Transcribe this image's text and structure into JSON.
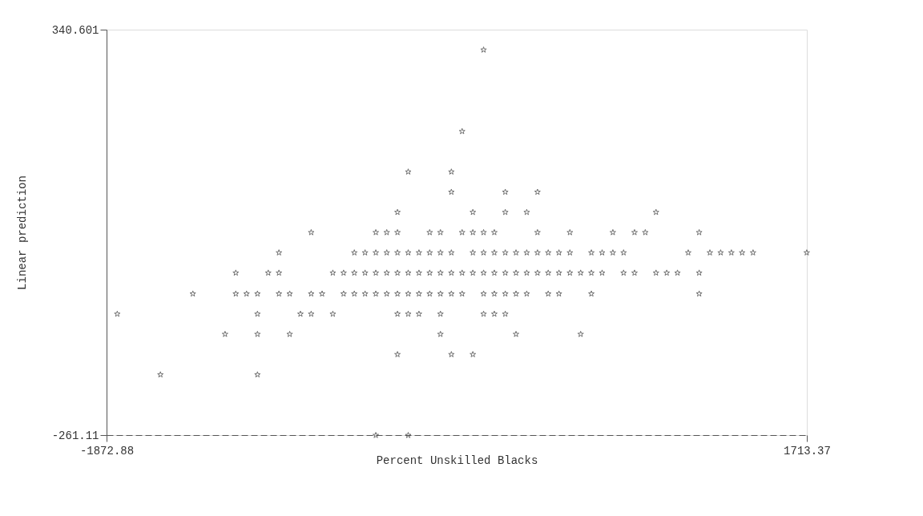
{
  "chart_data": {
    "type": "scatter",
    "xlabel": "Percent Unskilled Blacks",
    "ylabel": "Linear prediction",
    "marker": "star",
    "color": "#333333",
    "grid": false,
    "xlim": [
      -1872.88,
      1713.37
    ],
    "xticks": [
      -1872.88,
      1713.37
    ],
    "ylim": [
      -261.11,
      340.601
    ],
    "yticks": [
      -261.11,
      340.601
    ],
    "x": [
      58,
      -52,
      -328,
      -107,
      -107,
      169,
      334,
      -383,
      3,
      169,
      279,
      941,
      -825,
      -494,
      -438,
      -383,
      -218,
      -163,
      -52,
      3,
      58,
      113,
      334,
      500,
      720,
      831,
      886,
      1162,
      -990,
      -604,
      -549,
      -494,
      -438,
      -383,
      -328,
      -273,
      -218,
      -163,
      -107,
      3,
      58,
      113,
      169,
      224,
      279,
      334,
      389,
      444,
      500,
      610,
      665,
      720,
      775,
      1106,
      1217,
      1272,
      1327,
      1382,
      1438,
      1713,
      -1211,
      -1045,
      -990,
      -714,
      -659,
      -604,
      -549,
      -494,
      -438,
      -383,
      -328,
      -273,
      -218,
      -163,
      -107,
      -52,
      3,
      58,
      113,
      169,
      224,
      279,
      334,
      389,
      444,
      500,
      555,
      610,
      665,
      775,
      831,
      941,
      996,
      1051,
      1162,
      -1431,
      -1211,
      -1156,
      -1100,
      -990,
      -935,
      -825,
      -769,
      -659,
      -604,
      -549,
      -494,
      -438,
      -383,
      -328,
      -273,
      -218,
      -163,
      -107,
      -52,
      58,
      113,
      169,
      224,
      279,
      389,
      444,
      610,
      1162,
      -1818,
      -1100,
      -880,
      -825,
      -714,
      -383,
      -328,
      -273,
      -163,
      58,
      113,
      169,
      -1266,
      -1100,
      -935,
      -163,
      224,
      555,
      -383,
      -107,
      3,
      -1597,
      -1100,
      -494,
      -328
    ],
    "values": [
      311,
      190,
      130,
      130,
      100,
      100,
      100,
      70,
      70,
      70,
      70,
      70,
      40,
      40,
      40,
      40,
      40,
      40,
      40,
      40,
      40,
      40,
      40,
      40,
      40,
      40,
      40,
      40,
      10,
      10,
      10,
      10,
      10,
      10,
      10,
      10,
      10,
      10,
      10,
      10,
      10,
      10,
      10,
      10,
      10,
      10,
      10,
      10,
      10,
      10,
      10,
      10,
      10,
      10,
      10,
      10,
      10,
      10,
      10,
      10,
      -20,
      -20,
      -20,
      -20,
      -20,
      -20,
      -20,
      -20,
      -20,
      -20,
      -20,
      -20,
      -20,
      -20,
      -20,
      -20,
      -20,
      -20,
      -20,
      -20,
      -20,
      -20,
      -20,
      -20,
      -20,
      -20,
      -20,
      -20,
      -20,
      -20,
      -20,
      -20,
      -20,
      -20,
      -20,
      -51,
      -51,
      -51,
      -51,
      -51,
      -51,
      -51,
      -51,
      -51,
      -51,
      -51,
      -51,
      -51,
      -51,
      -51,
      -51,
      -51,
      -51,
      -51,
      -51,
      -51,
      -51,
      -51,
      -51,
      -51,
      -51,
      -51,
      -51,
      -51,
      -81,
      -81,
      -81,
      -81,
      -81,
      -81,
      -81,
      -81,
      -81,
      -81,
      -81,
      -81,
      -111,
      -111,
      -111,
      -111,
      -111,
      -111,
      -141,
      -141,
      -141,
      -171,
      -171,
      -261,
      -261
    ]
  }
}
